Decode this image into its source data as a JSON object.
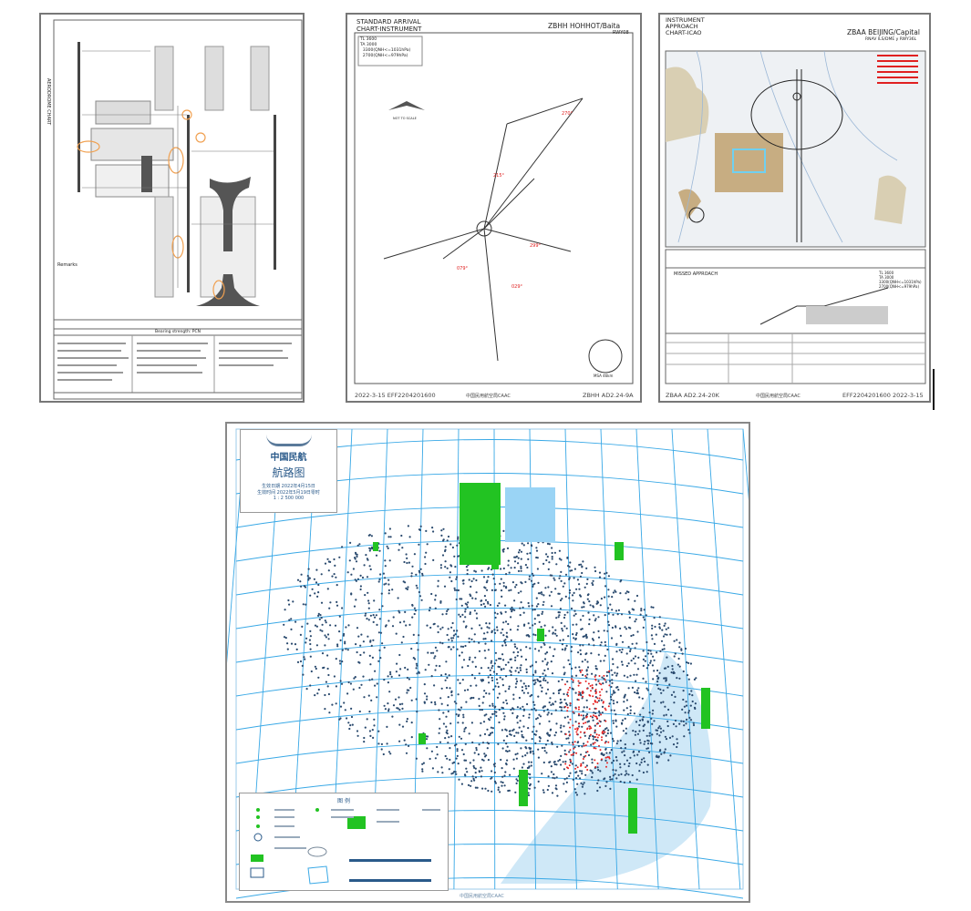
{
  "aerodrome_chart": {
    "side_label": "AERODROME CHART",
    "remarks_heading": "Remarks",
    "bearing_strength": "Bearing strength: PCN"
  },
  "star_chart": {
    "title": "STANDARD ARRIVAL\nCHART-INSTRUMENT",
    "airport": "ZBHH HOHHOT/Baita",
    "runway": "RWY08",
    "not_to_scale": "NOT TO SCALE",
    "transition": "TL 3600\nTA 3000\n  3300(QNH<=1031hPa)\n  2700(QNH<=979hPa)",
    "footer_left": "2022-3-15 EFF2204201600",
    "footer_center": "中国民用航空局CAAC",
    "footer_right": "ZBHH AD2.24-9A",
    "msa": "MSA 46km"
  },
  "approach_chart": {
    "title": "INSTRUMENT\nAPPROACH\nCHART-ICAO",
    "airport": "ZBAA BEIJING/Capital",
    "procedure": "RNAV ILS/DME y RWY36L",
    "missed_approach": "MISSED APPROACH",
    "transition": "TL 3600\nTA 3000\n3300(QNH<=1031hPa)\n2700(QNH<=979hPa)",
    "footer_left": "ZBAA AD2.24-20K",
    "footer_center": "中国民用航空局CAAC",
    "footer_right": "EFF2204201600 2022-3-15"
  },
  "enroute_chart": {
    "agency": "中国民航",
    "title": "航路图",
    "effective_date": "生效日期 2022年4月15日",
    "effective_time": "生效时间 2022年5月19日零时",
    "scale": "1 : 2 500 000",
    "legend_title": "图 例",
    "footer": "中国民用航空局CAAC",
    "colors": {
      "grid": "#38a8e6",
      "routes": "#2a4a6e",
      "restricted": "#22c322",
      "danger": "#e62222",
      "sea": "#cfe8f7"
    }
  }
}
